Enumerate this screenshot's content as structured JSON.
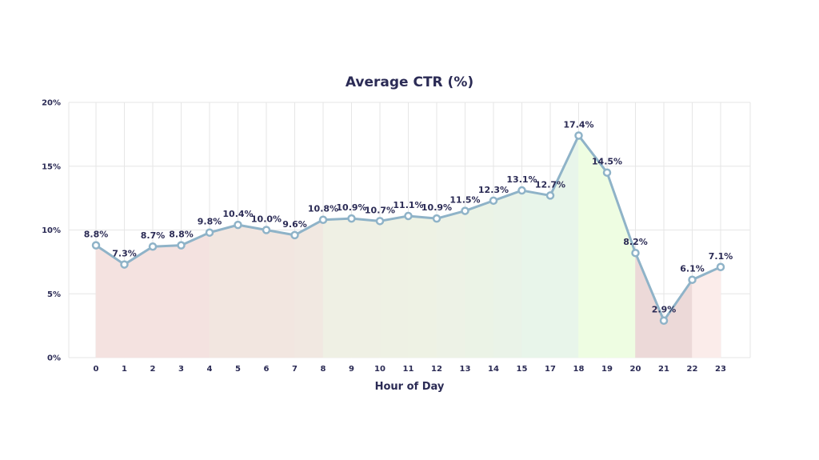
{
  "chart_data": {
    "type": "line",
    "title": "Average CTR (%)",
    "xlabel": "Hour of Day",
    "ylabel": "",
    "ylim": [
      0,
      20
    ],
    "yticks": [
      0,
      5,
      10,
      15,
      20
    ],
    "ytick_labels": [
      "0%",
      "5%",
      "10%",
      "15%",
      "20%"
    ],
    "grid": true,
    "categories": [
      "0",
      "1",
      "2",
      "3",
      "4",
      "5",
      "6",
      "7",
      "8",
      "9",
      "10",
      "11",
      "12",
      "13",
      "14",
      "15",
      "17",
      "18",
      "19",
      "20",
      "21",
      "22",
      "23"
    ],
    "values": [
      8.8,
      7.3,
      8.7,
      8.8,
      9.8,
      10.4,
      10.0,
      9.6,
      10.8,
      10.9,
      10.7,
      11.1,
      10.9,
      11.5,
      12.3,
      13.1,
      12.7,
      17.4,
      14.5,
      8.2,
      2.9,
      6.1,
      7.1
    ],
    "data_labels": [
      "8.8%",
      "7.3%",
      "8.7%",
      "8.8%",
      "9.8%",
      "10.4%",
      "10.0%",
      "9.6%",
      "10.8%",
      "10.9%",
      "10.7%",
      "11.1%",
      "10.9%",
      "11.5%",
      "12.3%",
      "13.1%",
      "12.7%",
      "17.4%",
      "14.5%",
      "8.2%",
      "2.9%",
      "6.1%",
      "7.1%"
    ],
    "line_color": "#8fb3c8",
    "fill_colors": [
      "#f4e2e0",
      "#f4e2e0",
      "#f4e2e0",
      "#f4e2e0",
      "#f2e6e0",
      "#f2e6e0",
      "#f2e6e0",
      "#f1e8e1",
      "#eff0e4",
      "#eff0e4",
      "#eef1e4",
      "#eef2e4",
      "#edf2e6",
      "#ebf3e6",
      "#eaf3e8",
      "#e8f5ea",
      "#e8f5ea",
      "#eefde2",
      "#eefde2",
      "#ecd9d8",
      "#ecd9d8",
      "#fbecea",
      "#fbecea"
    ]
  }
}
